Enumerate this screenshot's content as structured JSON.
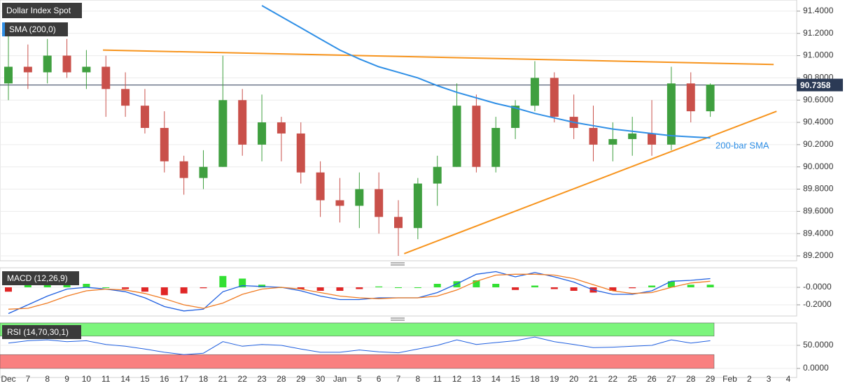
{
  "chart_data": [
    {
      "type": "candlestick",
      "title": "Dollar Index Spot",
      "categories": [
        "Dec",
        "7",
        "8",
        "9",
        "10",
        "11",
        "14",
        "15",
        "16",
        "17",
        "18",
        "21",
        "22",
        "23",
        "28",
        "29",
        "30",
        "Jan",
        "5",
        "6",
        "7",
        "8",
        "11",
        "12",
        "13",
        "14",
        "15",
        "18",
        "19",
        "20",
        "21",
        "22",
        "25",
        "26",
        "27",
        "28",
        "29",
        "Feb",
        "2",
        "3",
        "4"
      ],
      "up_color": "#3f9f3f",
      "down_color": "#c9504a",
      "series": [
        {
          "open": [
            90.75,
            90.9,
            90.85,
            91.0,
            90.85,
            90.9,
            90.7,
            90.55,
            90.35,
            90.05,
            89.9,
            90.0,
            90.6,
            90.2,
            90.4,
            90.3,
            89.95,
            89.7,
            89.65,
            89.8,
            89.55,
            89.45,
            89.85,
            90.0,
            90.55,
            90.0,
            90.35,
            90.55,
            90.8,
            90.45,
            90.35,
            90.2,
            90.25,
            90.3,
            90.2,
            90.75,
            90.5,
            null,
            null,
            null,
            null
          ],
          "high": [
            91.2,
            91.1,
            91.15,
            91.15,
            91.05,
            91.0,
            90.85,
            90.7,
            90.5,
            90.1,
            90.15,
            91.0,
            90.7,
            90.65,
            90.45,
            90.4,
            90.05,
            89.9,
            89.95,
            89.95,
            89.7,
            89.9,
            90.1,
            90.75,
            90.65,
            90.45,
            90.6,
            90.95,
            90.85,
            90.65,
            90.55,
            90.4,
            90.45,
            90.6,
            90.9,
            90.85,
            90.75,
            null,
            null,
            null,
            null
          ],
          "low": [
            90.6,
            90.7,
            90.75,
            90.8,
            90.7,
            90.45,
            90.45,
            90.3,
            89.95,
            89.75,
            89.8,
            90.0,
            90.1,
            90.05,
            90.05,
            89.85,
            89.55,
            89.5,
            89.45,
            89.4,
            89.2,
            89.35,
            89.65,
            90.0,
            89.95,
            89.95,
            90.25,
            90.5,
            90.4,
            90.25,
            90.05,
            90.05,
            90.1,
            90.1,
            90.15,
            90.4,
            90.45,
            null,
            null,
            null,
            null
          ],
          "close": [
            90.9,
            90.85,
            91.0,
            90.85,
            90.9,
            90.7,
            90.55,
            90.35,
            90.05,
            89.9,
            90.0,
            90.6,
            90.2,
            90.4,
            90.3,
            89.95,
            89.7,
            89.65,
            89.8,
            89.55,
            89.45,
            89.85,
            90.0,
            90.55,
            90.0,
            90.35,
            90.55,
            90.8,
            90.45,
            90.35,
            90.2,
            90.25,
            90.3,
            90.2,
            90.75,
            90.5,
            90.74,
            null,
            null,
            null,
            null
          ]
        },
        {
          "name": "SMA (200,0)",
          "color": "#2f8fe6",
          "values": [
            null,
            null,
            null,
            null,
            null,
            null,
            null,
            null,
            null,
            null,
            null,
            null,
            null,
            91.45,
            91.35,
            91.25,
            91.15,
            91.05,
            90.97,
            90.9,
            90.85,
            90.8,
            90.73,
            90.67,
            90.62,
            90.57,
            90.53,
            90.48,
            90.44,
            90.4,
            90.37,
            90.34,
            90.32,
            90.3,
            90.28,
            90.27,
            90.26,
            null,
            null,
            null,
            null
          ]
        }
      ],
      "trendlines": [
        {
          "color": "#f7941d",
          "x": [
            4.85,
            39.25
          ],
          "values": [
            91.05,
            90.92
          ]
        },
        {
          "color": "#f7941d",
          "x": [
            20.3,
            39.4
          ],
          "values": [
            89.22,
            90.5
          ]
        }
      ],
      "price_line": 90.7358,
      "annotation": "200-bar SMA",
      "ylim": [
        89.156,
        91.5
      ],
      "yticks": [
        {
          "value": 89.2,
          "label": "89.2000"
        },
        {
          "value": 89.4,
          "label": "89.4000"
        },
        {
          "value": 89.6,
          "label": "89.6000"
        },
        {
          "value": 89.8,
          "label": "89.8000"
        },
        {
          "value": 90,
          "label": "90.0000"
        },
        {
          "value": 90.2,
          "label": "90.2000"
        },
        {
          "value": 90.4,
          "label": "90.4000"
        },
        {
          "value": 90.6,
          "label": "90.6000"
        },
        {
          "value": 90.8,
          "label": "90.8000"
        },
        {
          "value": 91,
          "label": "91.0000"
        },
        {
          "value": 91.2,
          "label": "91.2000"
        },
        {
          "value": 91.4,
          "label": "91.4000"
        }
      ],
      "grid": true
    },
    {
      "type": "combo",
      "title": "MACD (12,26,9)",
      "histogram": [
        -0.05,
        0.04,
        0.08,
        0.08,
        0.04,
        0.0,
        -0.02,
        -0.05,
        -0.09,
        -0.07,
        -0.01,
        0.13,
        0.1,
        0.03,
        0.0,
        -0.02,
        -0.04,
        -0.04,
        -0.02,
        0.01,
        0.0,
        0.0,
        0.04,
        0.07,
        0.08,
        0.04,
        -0.03,
        0.02,
        -0.02,
        -0.04,
        -0.06,
        -0.04,
        -0.01,
        0.02,
        0.07,
        0.03,
        0.03,
        null,
        null,
        null,
        null
      ],
      "positive_color": "#33e033",
      "negative_color": "#e02626",
      "series": [
        {
          "color": "#1f5fe0",
          "values": [
            -0.3,
            -0.2,
            -0.1,
            -0.02,
            0.0,
            -0.02,
            -0.05,
            -0.12,
            -0.22,
            -0.27,
            -0.25,
            -0.05,
            0.02,
            0.01,
            0.0,
            -0.04,
            -0.1,
            -0.14,
            -0.14,
            -0.12,
            -0.12,
            -0.12,
            -0.06,
            0.04,
            0.15,
            0.18,
            0.12,
            0.17,
            0.12,
            0.06,
            -0.03,
            -0.08,
            -0.08,
            -0.04,
            0.07,
            0.08,
            0.1,
            null,
            null,
            null,
            null
          ]
        },
        {
          "color": "#f07b22",
          "values": [
            -0.25,
            -0.24,
            -0.18,
            -0.1,
            -0.04,
            -0.02,
            -0.03,
            -0.07,
            -0.13,
            -0.2,
            -0.24,
            -0.18,
            -0.08,
            -0.02,
            0.0,
            -0.02,
            -0.06,
            -0.1,
            -0.12,
            -0.13,
            -0.12,
            -0.12,
            -0.1,
            -0.03,
            0.07,
            0.14,
            0.15,
            0.15,
            0.14,
            0.1,
            0.03,
            -0.04,
            -0.07,
            -0.06,
            0.0,
            0.05,
            0.07,
            null,
            null,
            null,
            null
          ]
        }
      ],
      "ylim": [
        -0.328,
        0.224
      ],
      "yticks": [
        {
          "value": 0,
          "label": "-0.0000"
        },
        {
          "value": -0.2,
          "label": "-0.2000"
        }
      ],
      "grid": true
    },
    {
      "type": "line",
      "title": "RSI (14,70,30,1)",
      "bands": [
        {
          "from": 70,
          "to": 100,
          "color": "#7cf57c"
        },
        {
          "from": 0,
          "to": 30,
          "color": "#f98080"
        }
      ],
      "series": [
        {
          "color": "#1f5fe0",
          "values": [
            55,
            60,
            62,
            58,
            60,
            52,
            48,
            42,
            35,
            30,
            33,
            58,
            48,
            52,
            50,
            42,
            35,
            35,
            40,
            36,
            34,
            42,
            50,
            62,
            52,
            56,
            60,
            68,
            58,
            52,
            45,
            46,
            48,
            50,
            62,
            55,
            60,
            null,
            null,
            null,
            null
          ]
        }
      ],
      "ylim": [
        -19.7,
        98.5
      ],
      "yticks": [
        {
          "value": 50,
          "label": "50.0000"
        },
        {
          "value": 0,
          "label": "0.0000"
        }
      ],
      "grid": true
    }
  ]
}
